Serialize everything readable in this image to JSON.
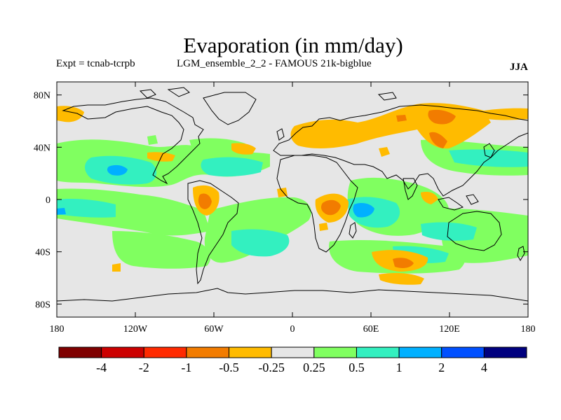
{
  "title": "Evaporation (in mm/day)",
  "expt_label": "Expt = tcnab-tcrpb",
  "subtitle": "LGM_ensemble_2_2 - FAMOUS 21k-bigblue",
  "season": "JJA",
  "map": {
    "projection": "cylindrical equidistant",
    "lon_range": [
      -180,
      180
    ],
    "lat_range": [
      -90,
      90
    ],
    "background_color": "#e6e6e6",
    "y_ticks": [
      {
        "lat": 80,
        "label": "80N"
      },
      {
        "lat": 40,
        "label": "40N"
      },
      {
        "lat": 0,
        "label": "0"
      },
      {
        "lat": -40,
        "label": "40S"
      },
      {
        "lat": -80,
        "label": "80S"
      }
    ],
    "x_ticks": [
      {
        "lon": -180,
        "label": "180"
      },
      {
        "lon": -120,
        "label": "120W"
      },
      {
        "lon": -60,
        "label": "60W"
      },
      {
        "lon": 0,
        "label": "0"
      },
      {
        "lon": 60,
        "label": "60E"
      },
      {
        "lon": 120,
        "label": "120E"
      },
      {
        "lon": 180,
        "label": "180"
      }
    ]
  },
  "colorbar": {
    "colors": [
      "#7f0000",
      "#cc0000",
      "#ff2a00",
      "#f27c00",
      "#ffbb00",
      "#e6e6e6",
      "#80ff60",
      "#33f0c0",
      "#00b0ff",
      "#0050ff",
      "#00007f"
    ],
    "labels": [
      "-4",
      "-2",
      "-1",
      "-0.5",
      "-0.25",
      "0.25",
      "0.5",
      "1",
      "2",
      "4"
    ]
  }
}
